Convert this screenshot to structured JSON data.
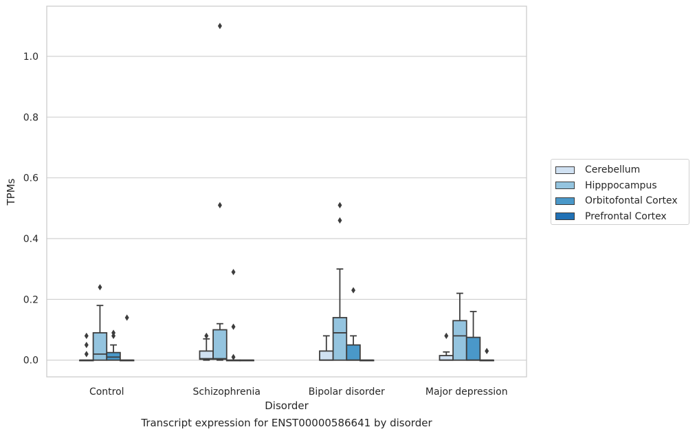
{
  "chart_data": {
    "type": "box",
    "caption": "Transcript expression for ENST00000586641 by disorder",
    "xlabel": "Disorder",
    "ylabel": "TPMs",
    "ylim": [
      -0.055,
      1.165
    ],
    "yticks": [
      "0.0",
      "0.2",
      "0.4",
      "0.6",
      "0.8",
      "1.0"
    ],
    "grid": true,
    "legend_position": "right",
    "categories": [
      "Control",
      "Schizophrenia",
      "Bipolar disorder",
      "Major depression"
    ],
    "series": [
      {
        "name": "Cerebellum",
        "color": "#d0e1f2",
        "boxes": [
          {
            "q1": 0,
            "median": 0,
            "q3": 0,
            "whislo": 0,
            "whishi": 0,
            "fliers": [
              0.02,
              0.05,
              0.08
            ]
          },
          {
            "q1": 0.003,
            "median": 0.005,
            "q3": 0.03,
            "whislo": 0,
            "whishi": 0.07,
            "fliers": [
              0.08
            ]
          },
          {
            "q1": 0,
            "median": 0,
            "q3": 0.03,
            "whislo": 0,
            "whishi": 0.08,
            "fliers": []
          },
          {
            "q1": 0,
            "median": 0,
            "q3": 0.015,
            "whislo": 0,
            "whishi": 0.027,
            "fliers": [
              0.08
            ]
          }
        ]
      },
      {
        "name": "Hipppocampus",
        "color": "#94c4df",
        "boxes": [
          {
            "q1": 0,
            "median": 0.02,
            "q3": 0.09,
            "whislo": 0,
            "whishi": 0.18,
            "fliers": [
              0.24
            ]
          },
          {
            "q1": 0.003,
            "median": 0.005,
            "q3": 0.1,
            "whislo": 0,
            "whishi": 0.12,
            "fliers": [
              0.51,
              1.1
            ]
          },
          {
            "q1": 0,
            "median": 0.09,
            "q3": 0.14,
            "whislo": 0,
            "whishi": 0.3,
            "fliers": [
              0.46,
              0.51
            ]
          },
          {
            "q1": 0,
            "median": 0.08,
            "q3": 0.13,
            "whislo": 0,
            "whishi": 0.22,
            "fliers": []
          }
        ]
      },
      {
        "name": "Orbitofontal Cortex",
        "color": "#4a98c9",
        "boxes": [
          {
            "q1": 0,
            "median": 0.01,
            "q3": 0.025,
            "whislo": 0,
            "whishi": 0.05,
            "fliers": [
              0.08,
              0.09
            ]
          },
          {
            "q1": 0,
            "median": 0,
            "q3": 0,
            "whislo": 0,
            "whishi": 0,
            "fliers": [
              0.01,
              0.11,
              0.29
            ]
          },
          {
            "q1": 0,
            "median": 0,
            "q3": 0.05,
            "whislo": 0,
            "whishi": 0.08,
            "fliers": [
              0.23
            ]
          },
          {
            "q1": 0,
            "median": 0,
            "q3": 0.075,
            "whislo": 0,
            "whishi": 0.16,
            "fliers": []
          }
        ]
      },
      {
        "name": "Prefrontal Cortex",
        "color": "#2171b5",
        "boxes": [
          {
            "q1": 0,
            "median": 0,
            "q3": 0,
            "whislo": 0,
            "whishi": 0,
            "fliers": [
              0.14
            ]
          },
          {
            "q1": 0,
            "median": 0,
            "q3": 0,
            "whislo": 0,
            "whishi": 0,
            "fliers": []
          },
          {
            "q1": 0,
            "median": 0,
            "q3": 0,
            "whislo": 0,
            "whishi": 0,
            "fliers": []
          },
          {
            "q1": 0,
            "median": 0,
            "q3": 0,
            "whislo": 0,
            "whishi": 0,
            "fliers": [
              0.03
            ]
          }
        ]
      }
    ]
  }
}
